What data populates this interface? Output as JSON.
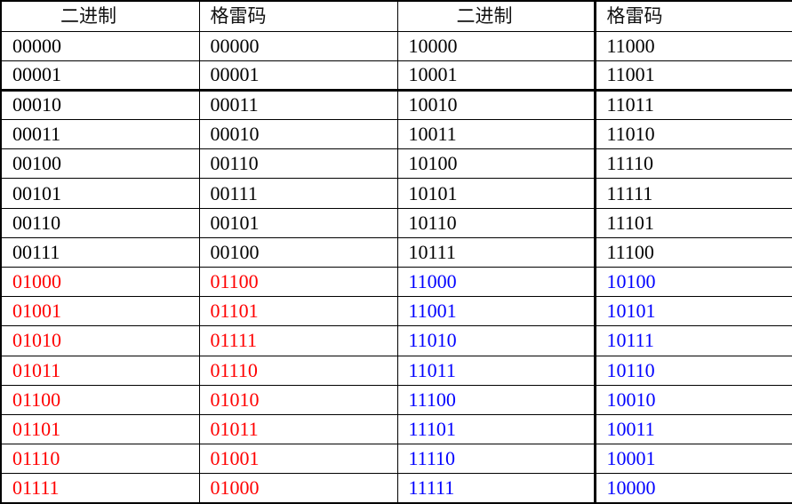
{
  "headers": [
    "二进制",
    "格雷码",
    "二进制",
    "格雷码"
  ],
  "colors": {
    "black": "#000000",
    "red": "#ff0000",
    "blue": "#0000ff"
  },
  "rows": [
    {
      "left_color": "black",
      "right_color": "black",
      "cells": [
        "00000",
        "00000",
        "10000",
        "11000"
      ]
    },
    {
      "left_color": "black",
      "right_color": "black",
      "cells": [
        "00001",
        "00001",
        "10001",
        "11001"
      ]
    },
    {
      "left_color": "black",
      "right_color": "black",
      "cells": [
        "00010",
        "00011",
        "10010",
        "11011"
      ]
    },
    {
      "left_color": "black",
      "right_color": "black",
      "cells": [
        "00011",
        "00010",
        "10011",
        "11010"
      ]
    },
    {
      "left_color": "black",
      "right_color": "black",
      "cells": [
        "00100",
        "00110",
        "10100",
        "11110"
      ]
    },
    {
      "left_color": "black",
      "right_color": "black",
      "cells": [
        "00101",
        "00111",
        "10101",
        "11111"
      ]
    },
    {
      "left_color": "black",
      "right_color": "black",
      "cells": [
        "00110",
        "00101",
        "10110",
        "11101"
      ]
    },
    {
      "left_color": "black",
      "right_color": "black",
      "cells": [
        "00111",
        "00100",
        "10111",
        "11100"
      ]
    },
    {
      "left_color": "red",
      "right_color": "blue",
      "cells": [
        "01000",
        "01100",
        "11000",
        "10100"
      ]
    },
    {
      "left_color": "red",
      "right_color": "blue",
      "cells": [
        "01001",
        "01101",
        "11001",
        "10101"
      ]
    },
    {
      "left_color": "red",
      "right_color": "blue",
      "cells": [
        "01010",
        "01111",
        "11010",
        "10111"
      ]
    },
    {
      "left_color": "red",
      "right_color": "blue",
      "cells": [
        "01011",
        "01110",
        "11011",
        "10110"
      ]
    },
    {
      "left_color": "red",
      "right_color": "blue",
      "cells": [
        "01100",
        "01010",
        "11100",
        "10010"
      ]
    },
    {
      "left_color": "red",
      "right_color": "blue",
      "cells": [
        "01101",
        "01011",
        "11101",
        "10011"
      ]
    },
    {
      "left_color": "red",
      "right_color": "blue",
      "cells": [
        "01110",
        "01001",
        "11110",
        "10001"
      ]
    },
    {
      "left_color": "red",
      "right_color": "blue",
      "cells": [
        "01111",
        "01000",
        "11111",
        "10000"
      ]
    }
  ]
}
